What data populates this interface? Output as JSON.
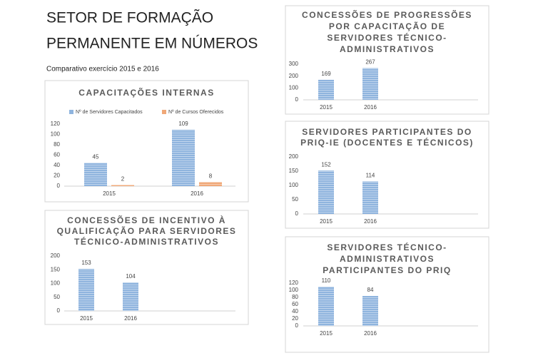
{
  "header": {
    "title": [
      "SETOR DE FORMAÇÃO",
      "PERMANENTE EM NÚMEROS"
    ],
    "subtitle": "Comparativo exercício 2015 e 2016"
  },
  "chart_data": [
    {
      "type": "bar",
      "title": [
        "CAPACITAÇÕES INTERNAS"
      ],
      "categories": [
        "2015",
        "2016"
      ],
      "series": [
        {
          "name": "Nº de Servidores Capacitados",
          "color": "#8fb4de",
          "values": [
            45,
            109
          ]
        },
        {
          "name": "Nº de Cursos Oferecidos",
          "color": "#f0a878",
          "values": [
            2,
            8
          ]
        }
      ],
      "ylim": [
        0,
        120
      ],
      "yticks": [
        0,
        20,
        40,
        60,
        80,
        100,
        120
      ],
      "legend": "top"
    },
    {
      "type": "bar",
      "title": [
        "CONCESSÕES DE INCENTIVO À",
        "QUALIFICAÇÃO PARA SERVIDORES",
        "TÉCNICO-ADMINISTRATIVOS"
      ],
      "categories": [
        "2015",
        "2016"
      ],
      "values": [
        153,
        104
      ],
      "color": "#8fb4de",
      "ylim": [
        0,
        200
      ],
      "yticks": [
        0,
        50,
        100,
        150,
        200
      ]
    },
    {
      "type": "bar",
      "title": [
        "CONCESSÕES DE PROGRESSÕES",
        "POR CAPACITAÇÃO DE",
        "SERVIDORES TÉCNICO-",
        "ADMINISTRATIVOS"
      ],
      "categories": [
        "2015",
        "2016"
      ],
      "values": [
        169,
        267
      ],
      "color": "#8fb4de",
      "ylim": [
        0,
        300
      ],
      "yticks": [
        0,
        100,
        200,
        300
      ]
    },
    {
      "type": "bar",
      "title": [
        "SERVIDORES PARTICIPANTES DO",
        "PRIQ-IE (DOCENTES E TÉCNICOS)"
      ],
      "categories": [
        "2015",
        "2016"
      ],
      "values": [
        152,
        114
      ],
      "color": "#8fb4de",
      "ylim": [
        0,
        200
      ],
      "yticks": [
        0,
        50,
        100,
        150,
        200
      ]
    },
    {
      "type": "bar",
      "title": [
        "SERVIDORES TÉCNICO-",
        "ADMINISTRATIVOS",
        "PARTICIPANTES DO PRIQ"
      ],
      "categories": [
        "2015",
        "2016"
      ],
      "values": [
        110,
        84
      ],
      "color": "#8fb4de",
      "ylim": [
        0,
        120
      ],
      "yticks": [
        0,
        20,
        40,
        60,
        80,
        100,
        120
      ]
    }
  ]
}
